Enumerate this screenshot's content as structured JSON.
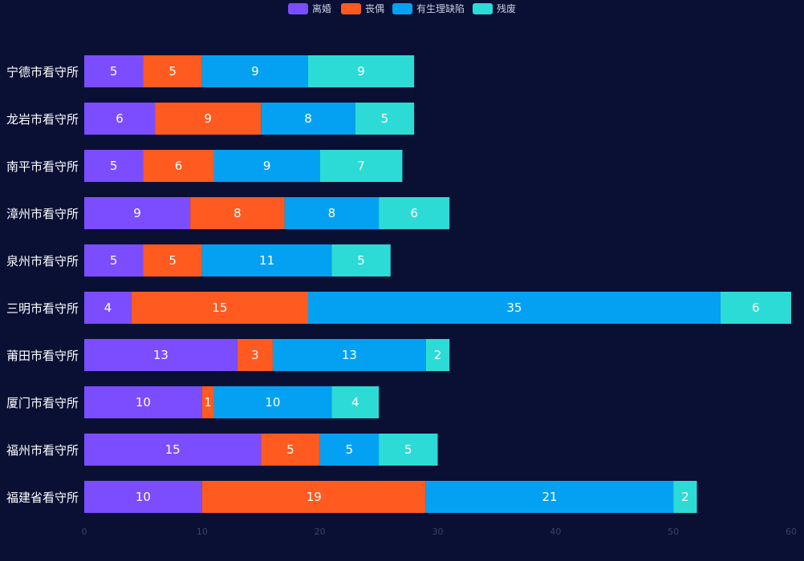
{
  "chart_data": {
    "type": "bar",
    "orientation": "horizontal",
    "stacked": true,
    "categories": [
      "宁德市看守所",
      "龙岩市看守所",
      "南平市看守所",
      "漳州市看守所",
      "泉州市看守所",
      "三明市看守所",
      "莆田市看守所",
      "厦门市看守所",
      "福州市看守所",
      "福建省看守所"
    ],
    "series": [
      {
        "name": "离婚",
        "color": "#7c4dff",
        "values": [
          5,
          6,
          5,
          9,
          5,
          4,
          13,
          10,
          15,
          10
        ]
      },
      {
        "name": "丧偶",
        "color": "#ff5a1f",
        "values": [
          5,
          9,
          6,
          8,
          5,
          15,
          3,
          1,
          5,
          19
        ]
      },
      {
        "name": "有生理缺陷",
        "color": "#04a1f2",
        "values": [
          9,
          8,
          9,
          8,
          11,
          35,
          13,
          10,
          5,
          21
        ]
      },
      {
        "name": "残废",
        "color": "#2ddbd6",
        "values": [
          9,
          5,
          7,
          6,
          5,
          6,
          2,
          4,
          5,
          2
        ]
      }
    ],
    "xlim": [
      0,
      60
    ],
    "xticks": [
      "0",
      "10",
      "20",
      "30",
      "40",
      "50",
      "60"
    ],
    "legend_position": "top-center",
    "grid": false,
    "data_labels": true
  }
}
